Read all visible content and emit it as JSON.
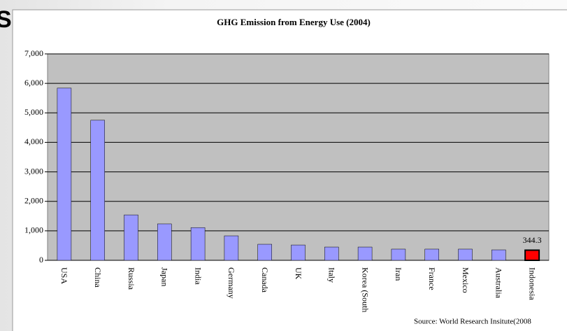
{
  "slide_title": "S",
  "chart_data": {
    "type": "bar",
    "title": "GHG Emission from Energy Use (2004)",
    "categories": [
      "USA",
      "China",
      "Russia",
      "Japan",
      "India",
      "Germany",
      "Canada",
      "UK",
      "Italy",
      "Korea (South",
      "Iran",
      "France",
      "Mexico",
      "Australia",
      "Indonesia"
    ],
    "values": [
      5840,
      4750,
      1540,
      1235,
      1110,
      830,
      545,
      520,
      450,
      450,
      380,
      380,
      380,
      355,
      344.3
    ],
    "value_labels": [
      null,
      null,
      null,
      null,
      null,
      null,
      null,
      null,
      null,
      null,
      null,
      null,
      null,
      null,
      "344.3"
    ],
    "colors": [
      "#9999ff",
      "#9999ff",
      "#9999ff",
      "#9999ff",
      "#9999ff",
      "#9999ff",
      "#9999ff",
      "#9999ff",
      "#9999ff",
      "#9999ff",
      "#9999ff",
      "#9999ff",
      "#9999ff",
      "#9999ff",
      "#ff0000"
    ],
    "ylim": [
      0,
      7000
    ],
    "yticks": [
      0,
      {
        "value": 1000,
        "label": "1,000"
      },
      {
        "value": 2000,
        "label": "2,000"
      },
      {
        "value": 3000,
        "label": "3,000"
      },
      {
        "value": 4000,
        "label": "4,000"
      },
      {
        "value": 5000,
        "label": "5,000"
      },
      {
        "value": 6000,
        "label": "6,000"
      },
      {
        "value": 7000,
        "label": "7,000"
      }
    ],
    "grid": true,
    "source": "Source: World Research Insitute(2008"
  }
}
